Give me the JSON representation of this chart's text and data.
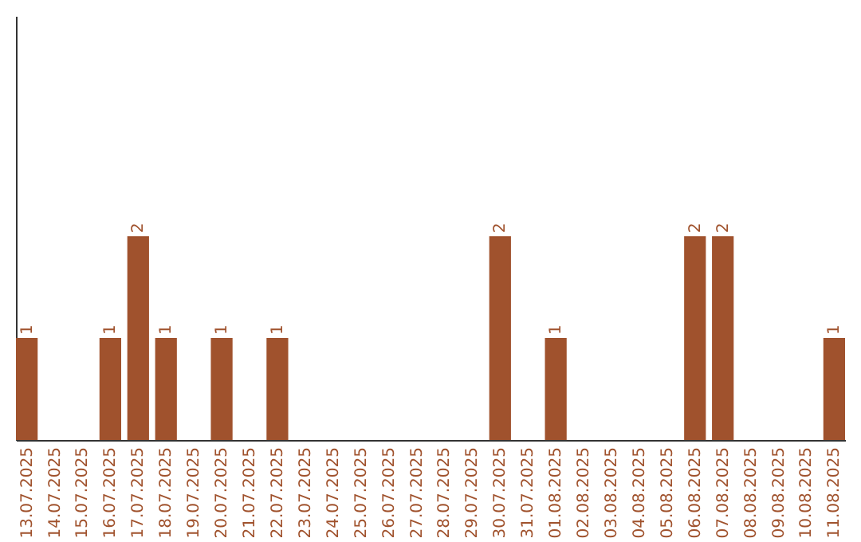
{
  "chart_data": {
    "type": "bar",
    "categories": [
      "13.07.2025",
      "14.07.2025",
      "15.07.2025",
      "16.07.2025",
      "17.07.2025",
      "18.07.2025",
      "19.07.2025",
      "20.07.2025",
      "21.07.2025",
      "22.07.2025",
      "23.07.2025",
      "24.07.2025",
      "25.07.2025",
      "26.07.2025",
      "27.07.2025",
      "28.07.2025",
      "29.07.2025",
      "30.07.2025",
      "31.07.2025",
      "01.08.2025",
      "02.08.2025",
      "03.08.2025",
      "04.08.2025",
      "05.08.2025",
      "06.08.2025",
      "07.08.2025",
      "08.08.2025",
      "09.08.2025",
      "10.08.2025",
      "11.08.2025"
    ],
    "values": [
      1,
      0,
      0,
      1,
      2,
      1,
      0,
      1,
      0,
      1,
      0,
      0,
      0,
      0,
      0,
      0,
      0,
      2,
      0,
      1,
      0,
      0,
      0,
      0,
      2,
      2,
      0,
      0,
      0,
      1
    ],
    "value_labels": [
      "1",
      null,
      null,
      "1",
      "2",
      "1",
      null,
      "1",
      null,
      "1",
      null,
      null,
      null,
      null,
      null,
      null,
      null,
      "2",
      null,
      "1",
      null,
      null,
      null,
      null,
      "2",
      "2",
      null,
      null,
      null,
      "1"
    ],
    "color": "#a0522d",
    "grid": false,
    "tick_labels": "x"
  }
}
